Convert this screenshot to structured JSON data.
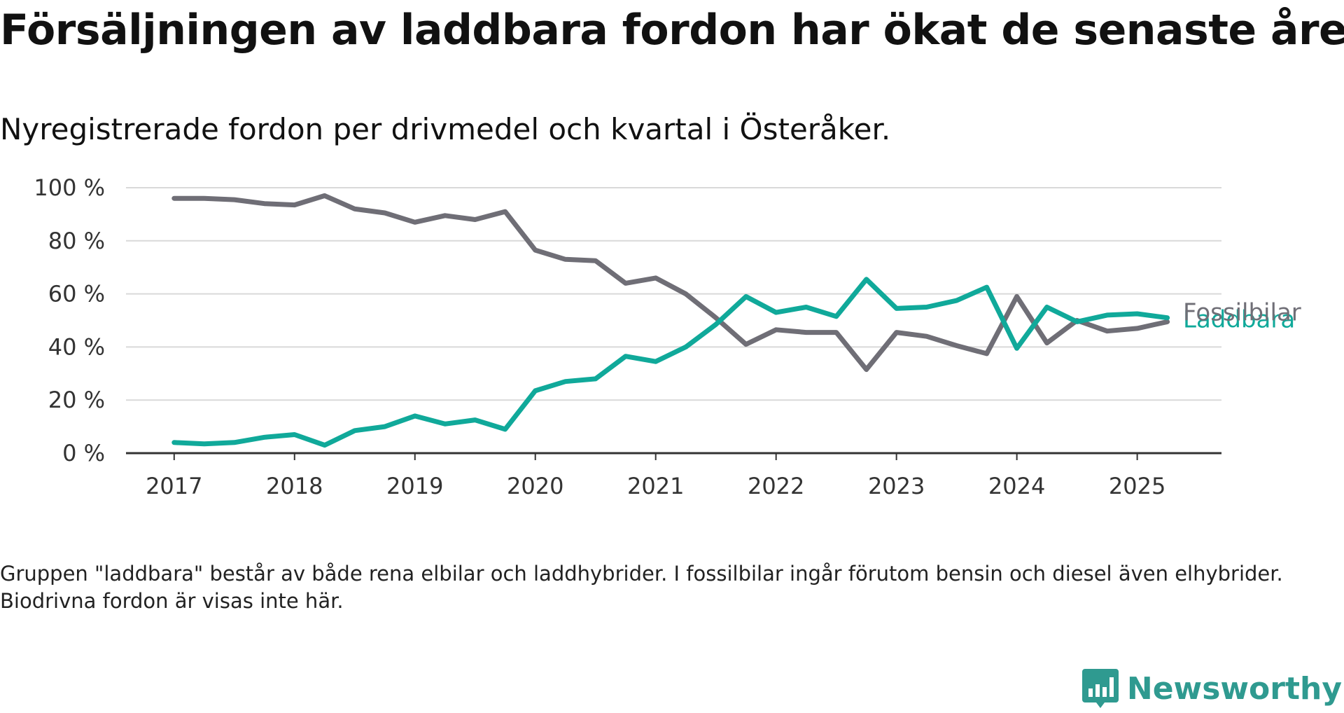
{
  "title": "Försäljningen av laddbara fordon har ökat de senaste åren",
  "subtitle": "Nyregistrerade fordon per drivmedel och kvartal i Österåker.",
  "note": "Gruppen \"laddbara\" består av både rena elbilar och laddhybrider. I fossilbilar ingår förutom bensin och diesel även elhybrider. Biodrivna fordon är visas inte här.",
  "brand": {
    "name": "Newsworthy",
    "color": "#2f9a90"
  },
  "chart_data": {
    "type": "line",
    "x_start": 2017,
    "x_step": 0.25,
    "xlim": [
      2016.6,
      2025.7
    ],
    "ylim": [
      0,
      100
    ],
    "yticks": [
      0,
      20,
      40,
      60,
      80,
      100
    ],
    "ytick_labels": [
      "0 %",
      "20 %",
      "40 %",
      "60 %",
      "80 %",
      "100 %"
    ],
    "xticks": [
      2017,
      2018,
      2019,
      2020,
      2021,
      2022,
      2023,
      2024,
      2025
    ],
    "xtick_labels": [
      "2017",
      "2018",
      "2019",
      "2020",
      "2021",
      "2022",
      "2023",
      "2024",
      "2025"
    ],
    "grid": true,
    "series": [
      {
        "name": "Fossilbilar",
        "color": "#6f6e76",
        "values": [
          96,
          96,
          95.5,
          94,
          93.5,
          97,
          92,
          90.5,
          87,
          89.5,
          88,
          91,
          76.5,
          73,
          72.5,
          64,
          66,
          60,
          51,
          41,
          46.5,
          45.5,
          45.5,
          31.5,
          45.5,
          44,
          40.5,
          37.5,
          59,
          41.5,
          50,
          46,
          47,
          49.5
        ]
      },
      {
        "name": "Laddbara",
        "color": "#10a99a",
        "values": [
          4,
          3.5,
          4,
          6,
          7,
          3,
          8.5,
          10,
          14,
          11,
          12.5,
          9,
          23.5,
          27,
          28,
          36.5,
          34.5,
          40,
          48.5,
          59,
          53,
          55,
          51.5,
          65.5,
          54.5,
          55,
          57.5,
          62.5,
          39.5,
          55,
          49.5,
          52,
          52.5,
          51
        ]
      }
    ]
  }
}
